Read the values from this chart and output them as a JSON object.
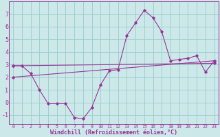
{
  "title": "",
  "xlabel": "Windchill (Refroidissement éolien,°C)",
  "background_color": "#cce8e8",
  "grid_color": "#99cccc",
  "line_color": "#993399",
  "spine_color": "#993399",
  "xlim": [
    -0.5,
    23.5
  ],
  "ylim": [
    -1.7,
    8.0
  ],
  "yticks": [
    -1,
    0,
    1,
    2,
    3,
    4,
    5,
    6,
    7
  ],
  "xticks": [
    0,
    1,
    2,
    3,
    4,
    5,
    6,
    7,
    8,
    9,
    10,
    11,
    12,
    13,
    14,
    15,
    16,
    17,
    18,
    19,
    20,
    21,
    22,
    23
  ],
  "series1_x": [
    0,
    1,
    2,
    3,
    4,
    5,
    6,
    7,
    8,
    9,
    10,
    11,
    12,
    13,
    14,
    15,
    16,
    17,
    18,
    19,
    20,
    21,
    22,
    23
  ],
  "series1_y": [
    2.9,
    2.9,
    2.3,
    1.0,
    -0.1,
    -0.1,
    -0.1,
    -1.2,
    -1.3,
    -0.4,
    1.4,
    2.5,
    2.6,
    5.3,
    6.3,
    7.3,
    6.7,
    5.6,
    3.3,
    3.4,
    3.5,
    3.7,
    2.4,
    3.3
  ],
  "series2_x": [
    0,
    23
  ],
  "series2_y": [
    2.0,
    3.3
  ],
  "series3_x": [
    0,
    23
  ],
  "series3_y": [
    2.9,
    3.1
  ],
  "xlabel_fontsize": 6.0,
  "ytick_fontsize": 6.0,
  "xtick_fontsize": 4.8
}
